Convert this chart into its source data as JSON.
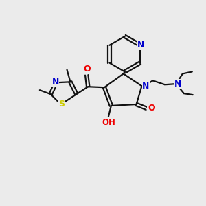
{
  "bg_color": "#ebebeb",
  "atom_colors": {
    "N": "#0000cc",
    "O": "#ee0000",
    "S": "#cccc00",
    "H": "#555555"
  },
  "bond_color": "#111111",
  "bond_width": 1.6,
  "figsize": [
    3.0,
    3.0
  ],
  "dpi": 100
}
